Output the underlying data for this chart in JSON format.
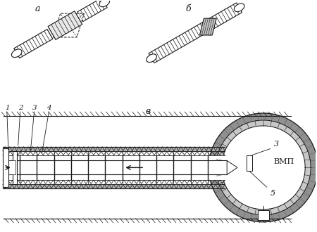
{
  "bg_color": "#ffffff",
  "line_color": "#1a1a1a",
  "label_a": "а",
  "label_b": "б",
  "label_v": "в",
  "label_3": "3",
  "label_bmp": "ВМП",
  "label_5": "5",
  "fig_width": 4.5,
  "fig_height": 3.3,
  "dpi": 100
}
